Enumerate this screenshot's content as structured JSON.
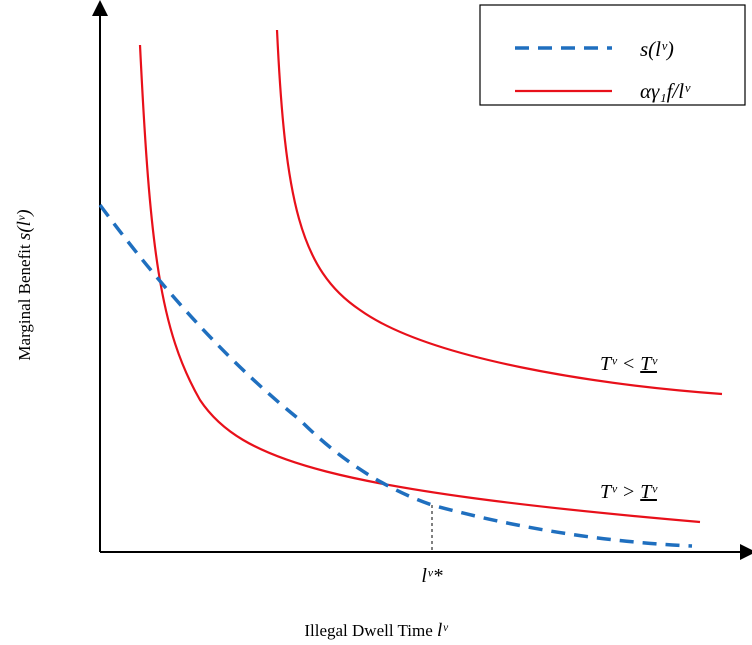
{
  "legend": {
    "entries": [
      "s(lᵛ)",
      "αγ₁f/lᵛ"
    ]
  },
  "axes": {
    "x_label": {
      "text": "Illegal Dwell Time",
      "math": "lᵛ"
    },
    "y_label": {
      "text": "Marginal Benefit",
      "math": "s(lᵛ)"
    }
  },
  "annotations": {
    "upper_curve": {
      "left": "Tᵛ <",
      "right": "Tᵛ"
    },
    "lower_curve": {
      "left": "Tᵛ >",
      "right": "Tᵛ"
    },
    "equilibrium": "lᵛ*"
  }
}
